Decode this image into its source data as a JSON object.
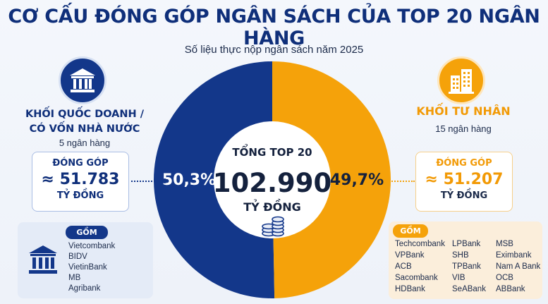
{
  "title": "CƠ CẤU ĐÓNG GÓP NGÂN SÁCH CỦA TOP 20 NGÂN HÀNG",
  "subtitle": "Số liệu thực nộp ngân sách năm 2025",
  "colors": {
    "state": "#13378a",
    "private": "#f5a20a",
    "title": "#0f2f7a"
  },
  "icons": {
    "left": "bank-building-icon",
    "right": "office-buildings-icon",
    "center": "coin-stack-icon"
  },
  "center": {
    "label": "TỔNG TOP 20",
    "value": "102.990",
    "unit": "TỶ ĐỒNG"
  },
  "state_group": {
    "title_line1": "KHỐI QUỐC DOANH /",
    "title_line2": "CÓ VỐN NHÀ NƯỚC",
    "count": "5 ngân hàng",
    "contrib_label": "ĐÓNG GÓP",
    "contrib_value": "≈ 51.783",
    "unit": "TỶ ĐỒNG",
    "list_label": "GỒM",
    "banks": [
      "Vietcombank",
      "BIDV",
      "VietinBank",
      "MB",
      "Agribank"
    ]
  },
  "private_group": {
    "title": "KHỐI TƯ NHÂN",
    "count": "15 ngân hàng",
    "contrib_label": "ĐÓNG GÓP",
    "contrib_value": "≈ 51.207",
    "unit": "TỶ ĐỒNG",
    "list_label": "GỒM",
    "banks": [
      "Techcombank",
      "LPBank",
      "MSB",
      "VPBank",
      "SHB",
      "Eximbank",
      "ACB",
      "TPBank",
      "Nam A Bank",
      "Sacombank",
      "VIB",
      "OCB",
      "HDBank",
      "SeABank",
      "ABBank"
    ]
  },
  "chart_data": {
    "type": "pie",
    "title": "CƠ CẤU ĐÓNG GÓP NGÂN SÁCH CỦA TOP 20 NGÂN HÀNG",
    "subtitle": "Số liệu thực nộp ngân sách năm 2025",
    "categories": [
      "KHỐI QUỐC DOANH / CÓ VỐN NHÀ NƯỚC",
      "KHỐI TƯ NHÂN"
    ],
    "values": [
      50.3,
      49.7
    ],
    "labels": [
      "50,3%",
      "49,7%"
    ],
    "amounts": [
      51783,
      51207
    ],
    "total": 102990,
    "donut": true
  }
}
